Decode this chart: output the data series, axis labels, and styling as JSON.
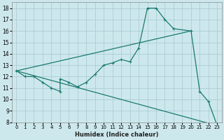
{
  "xlabel": "Humidex (Indice chaleur)",
  "ylabel": "",
  "xlim": [
    -0.5,
    23.5
  ],
  "ylim": [
    8,
    18.5
  ],
  "xticks": [
    0,
    1,
    2,
    3,
    4,
    5,
    6,
    7,
    8,
    9,
    10,
    11,
    12,
    13,
    14,
    15,
    16,
    17,
    18,
    19,
    20,
    21,
    22,
    23
  ],
  "yticks": [
    8,
    9,
    10,
    11,
    12,
    13,
    14,
    15,
    16,
    17,
    18
  ],
  "bg_color": "#cde8ed",
  "grid_color": "#aacdd4",
  "line_color": "#1a7a6e",
  "main_series": {
    "x": [
      0,
      1,
      2,
      3,
      4,
      5,
      5,
      6,
      7,
      8,
      9,
      10,
      11,
      12,
      13,
      14,
      15,
      16,
      17,
      18,
      20,
      21,
      22,
      23
    ],
    "y": [
      12.5,
      12.0,
      12.0,
      11.5,
      11.0,
      10.7,
      11.8,
      11.5,
      11.1,
      11.5,
      12.2,
      13.0,
      13.2,
      13.5,
      13.3,
      14.5,
      18.0,
      18.0,
      17.0,
      16.2,
      16.0,
      10.7,
      9.8,
      7.7
    ]
  },
  "straight_line1": {
    "x": [
      0,
      20
    ],
    "y": [
      12.5,
      16.0
    ]
  },
  "straight_line2": {
    "x": [
      0,
      23
    ],
    "y": [
      12.5,
      7.7
    ]
  }
}
